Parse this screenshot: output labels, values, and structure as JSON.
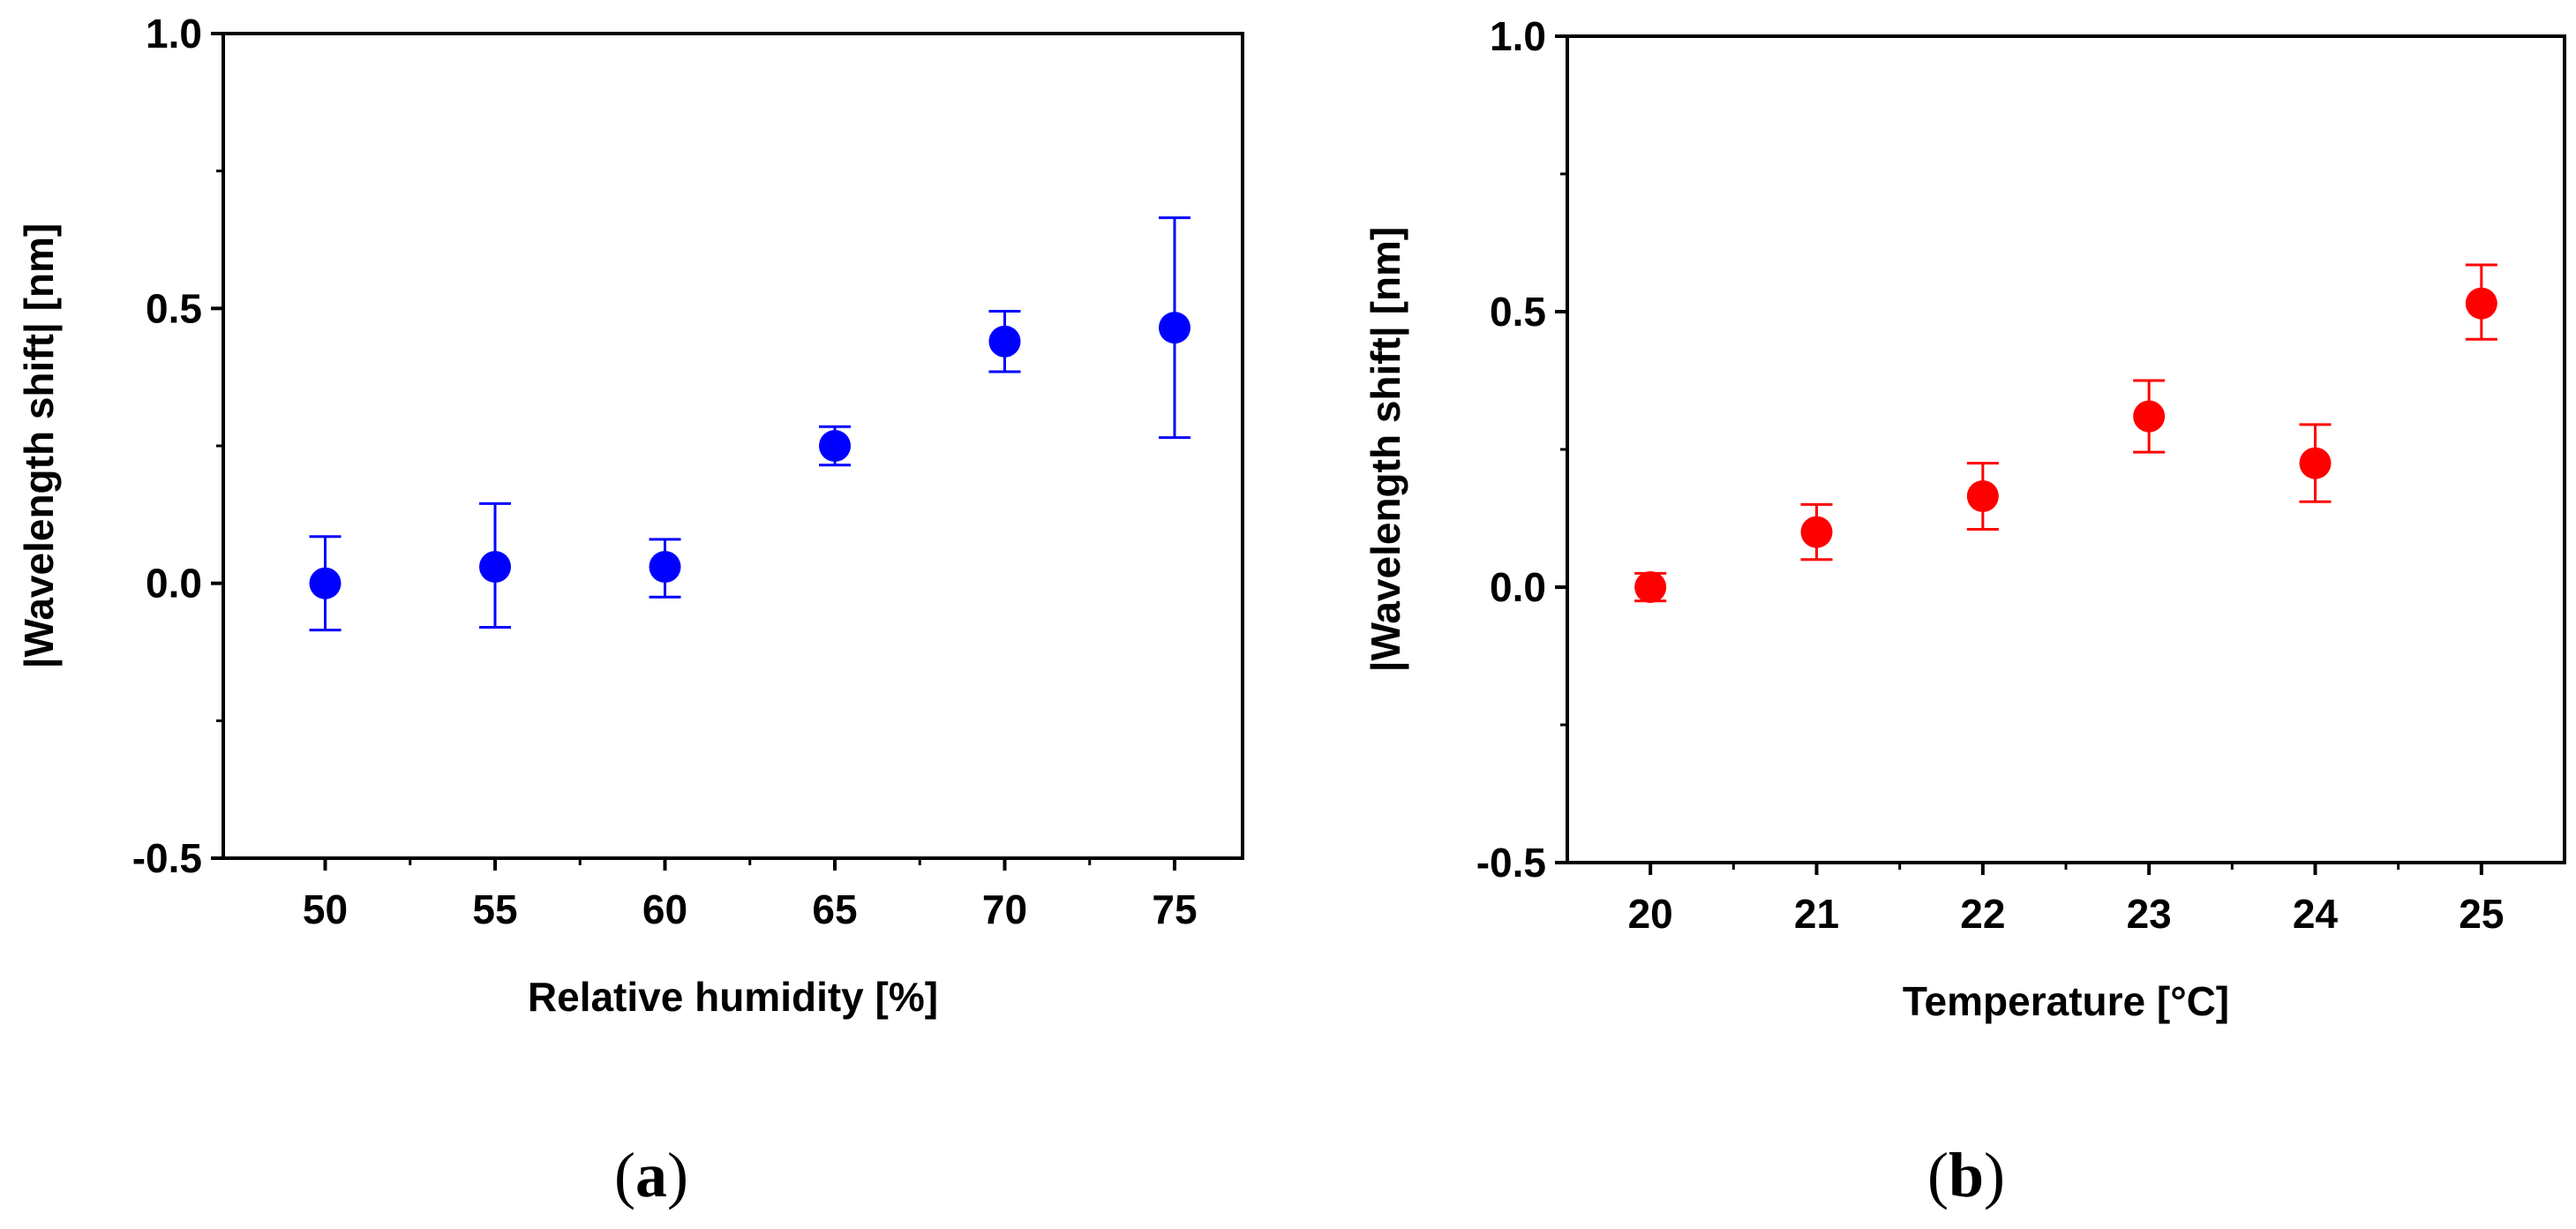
{
  "chart_data": [
    {
      "type": "scatter",
      "panel_label": "a",
      "title": "",
      "xlabel": "Relative humidity [%]",
      "ylabel": "|Wavelength shift| [nm]",
      "xlim": [
        47,
        77
      ],
      "ylim": [
        -0.5,
        1.0
      ],
      "xticks": [
        "50",
        "55",
        "60",
        "65",
        "70",
        "75"
      ],
      "yticks": [
        "-0.5",
        "0.0",
        "0.5",
        "1.0"
      ],
      "grid": false,
      "color": "#0000ff",
      "series": [
        {
          "name": "",
          "x": [
            50,
            55,
            60,
            65,
            70,
            75
          ],
          "y": [
            0.0,
            0.03,
            0.03,
            0.25,
            0.44,
            0.465
          ],
          "err_low": [
            0.085,
            0.11,
            0.055,
            0.035,
            0.055,
            0.2
          ],
          "err_high": [
            0.085,
            0.115,
            0.05,
            0.035,
            0.055,
            0.2
          ]
        }
      ]
    },
    {
      "type": "scatter",
      "panel_label": "b",
      "title": "",
      "xlabel": "Temperature [°C]",
      "ylabel": "|Wavelength shift| [nm]",
      "xlim": [
        19.5,
        25.5
      ],
      "ylim": [
        -0.5,
        1.0
      ],
      "xticks": [
        "20",
        "21",
        "22",
        "23",
        "24",
        "25"
      ],
      "yticks": [
        "-0.5",
        "0.0",
        "0.5",
        "1.0"
      ],
      "grid": false,
      "color": "#ff0000",
      "series": [
        {
          "name": "",
          "x": [
            20,
            21,
            22,
            23,
            24,
            25
          ],
          "y": [
            0.0,
            0.1,
            0.165,
            0.31,
            0.225,
            0.515
          ],
          "err_low": [
            0.025,
            0.05,
            0.06,
            0.065,
            0.07,
            0.065
          ],
          "err_high": [
            0.025,
            0.05,
            0.06,
            0.065,
            0.07,
            0.07
          ]
        }
      ]
    }
  ]
}
